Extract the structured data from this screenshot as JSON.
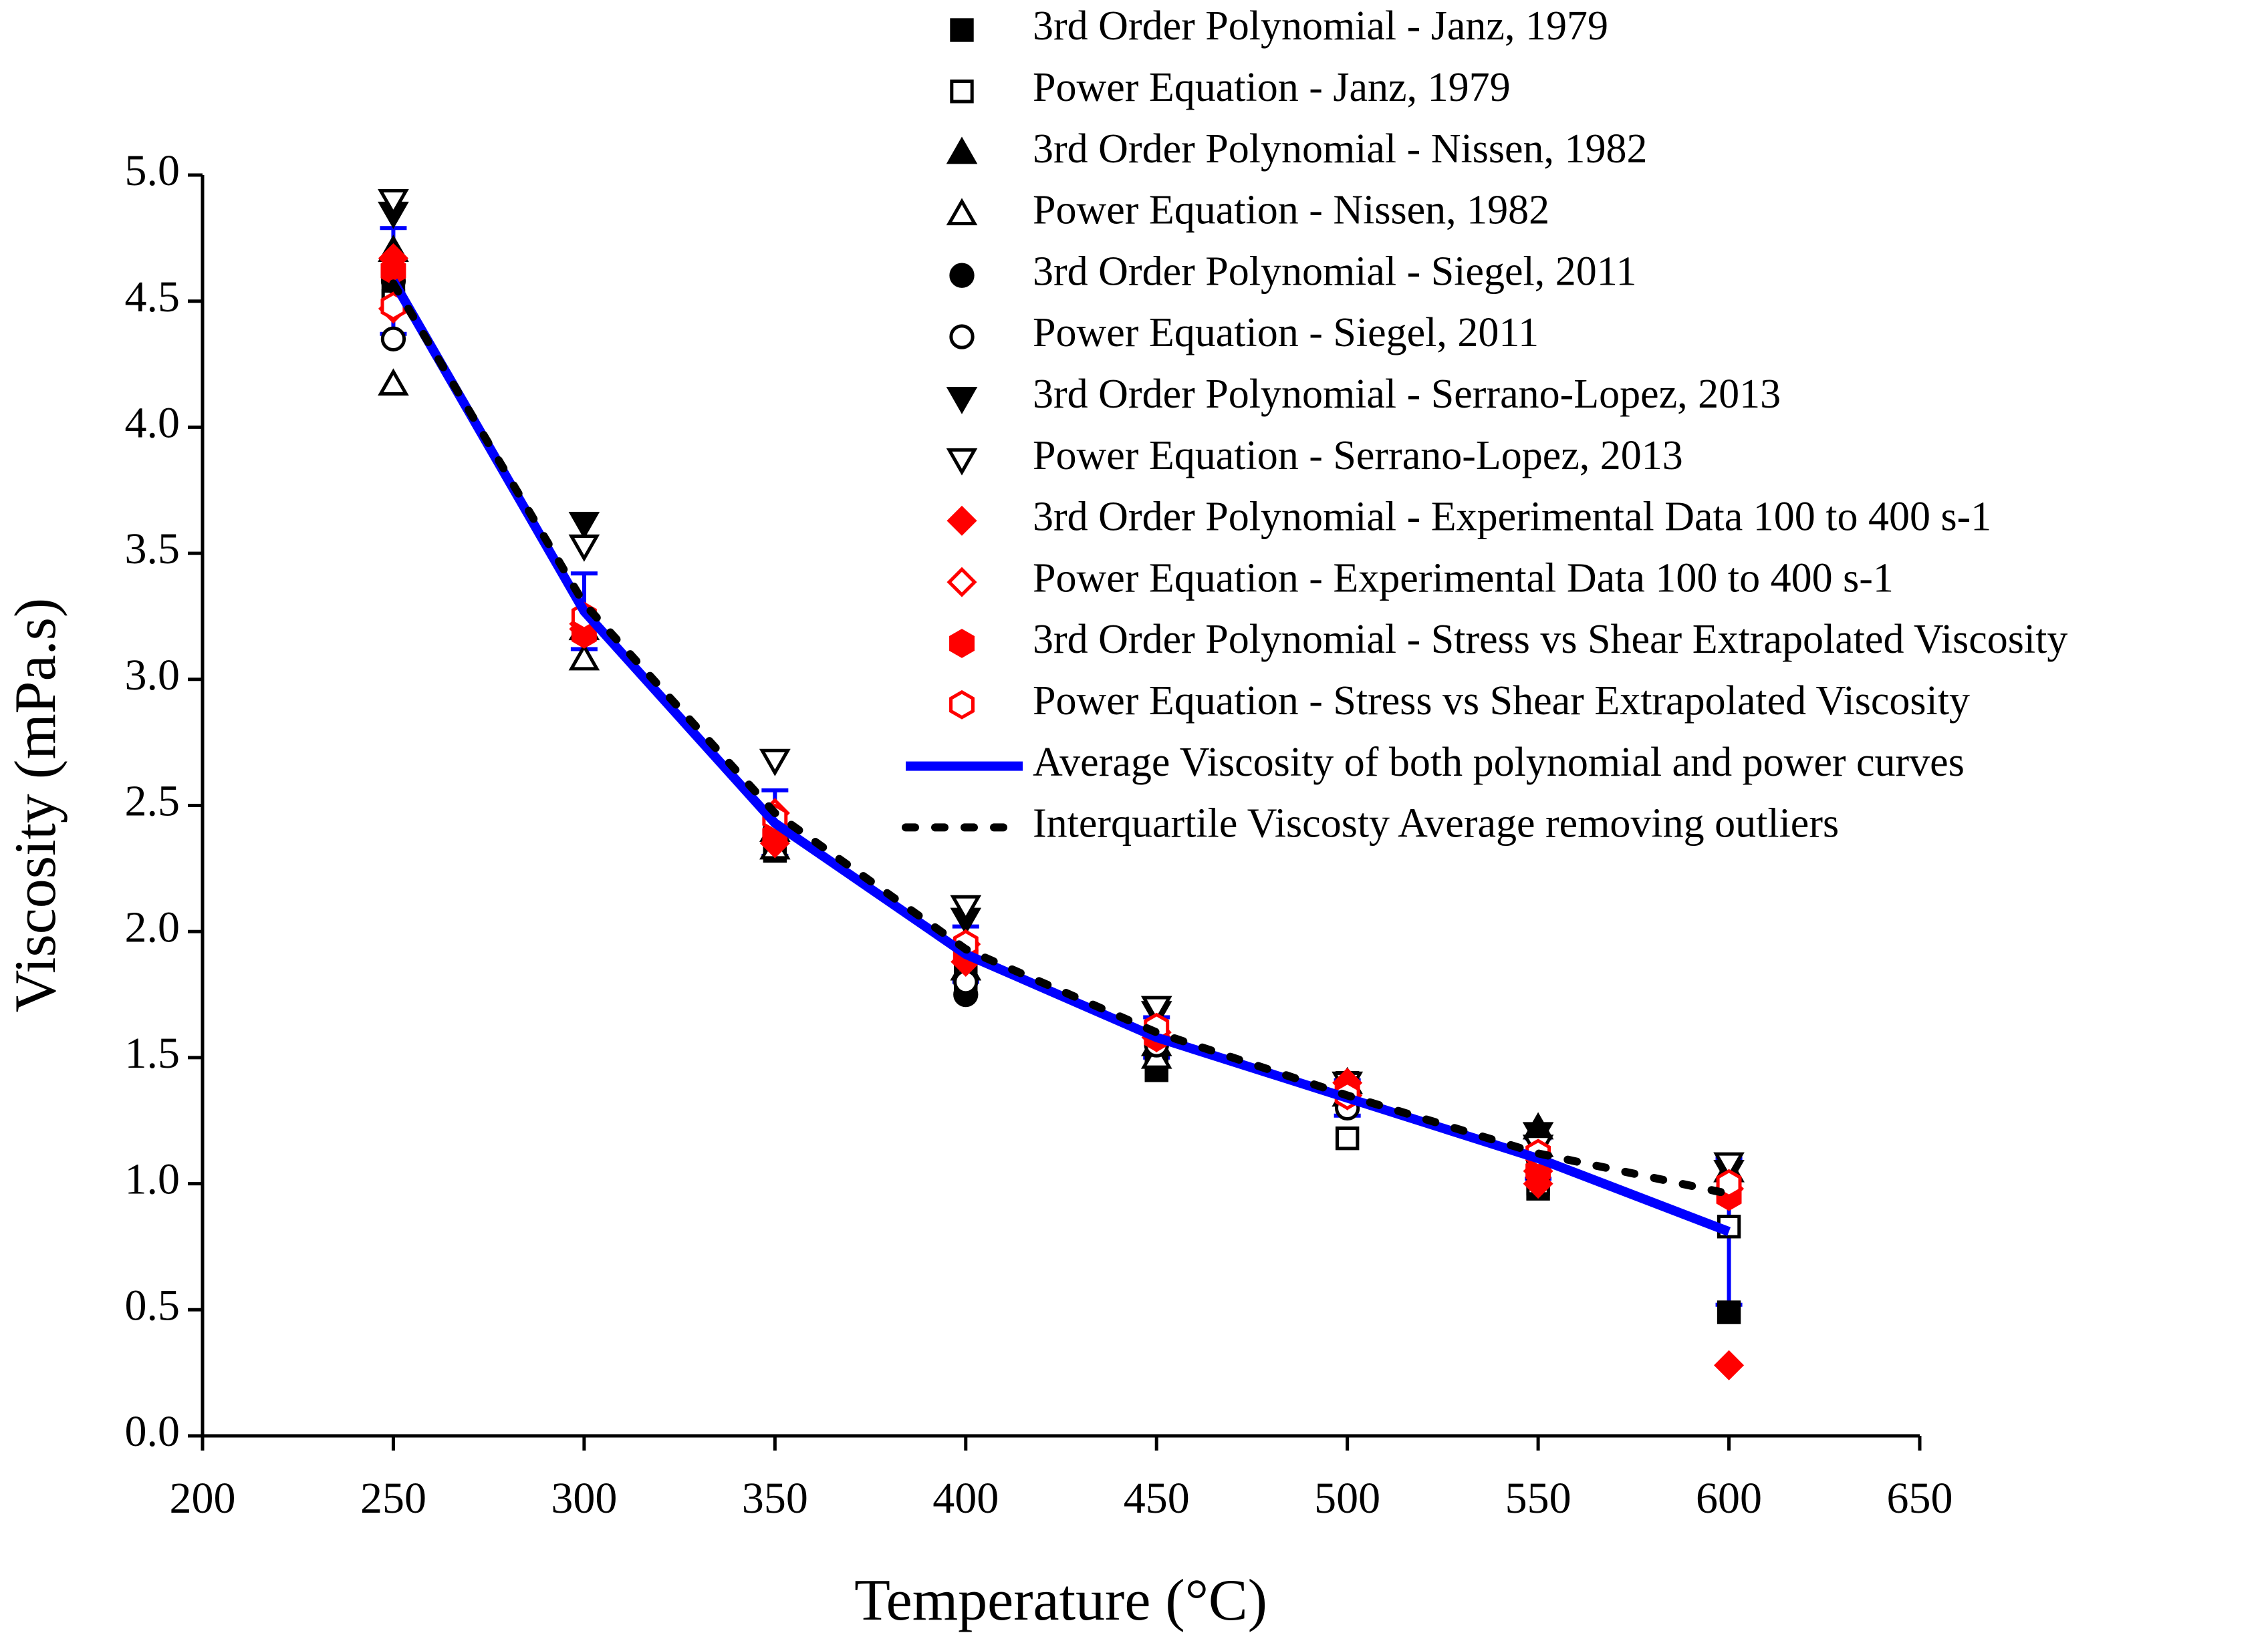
{
  "chart_data": {
    "type": "scatter",
    "xlabel": "Temperature (°C)",
    "ylabel": "Viscosity (mPa.s)",
    "x": [
      250,
      300,
      350,
      400,
      450,
      500,
      550,
      600
    ],
    "xlim": [
      200,
      650
    ],
    "xticks": [
      200,
      250,
      300,
      350,
      400,
      450,
      500,
      550,
      600,
      650
    ],
    "ylim": [
      0,
      5
    ],
    "yticks": [
      {
        "value": 0,
        "label": "0.0"
      },
      0.5,
      {
        "value": 1,
        "label": "1.0"
      },
      1.5,
      {
        "value": 2,
        "label": "2.0"
      },
      2.5,
      {
        "value": 3,
        "label": "3.0"
      },
      3.5,
      {
        "value": 4,
        "label": "4.0"
      },
      4.5,
      {
        "value": 5,
        "label": "5.0"
      }
    ],
    "series": [
      {
        "name": "3rd Order Polynomial - Janz, 1979",
        "color": "#000000",
        "marker": "square",
        "filled": true,
        "values": [
          4.55,
          3.2,
          2.32,
          1.8,
          1.45,
          1.4,
          0.98,
          0.49
        ]
      },
      {
        "name": "Power Equation - Janz, 1979",
        "color": "#000000",
        "marker": "square",
        "filled": false,
        "values": [
          4.5,
          3.2,
          2.35,
          1.85,
          1.5,
          1.18,
          1.0,
          0.83
        ]
      },
      {
        "name": "3rd Order Polynomial - Nissen, 1982",
        "color": "#000000",
        "marker": "triangle-up",
        "filled": true,
        "values": [
          4.7,
          3.2,
          2.4,
          1.85,
          1.55,
          1.4,
          1.22,
          1.05
        ]
      },
      {
        "name": "Power Equation - Nissen, 1982",
        "color": "#000000",
        "marker": "triangle-up",
        "filled": false,
        "values": [
          4.17,
          3.08,
          2.33,
          1.85,
          1.5,
          1.35,
          1.15,
          1.05
        ]
      },
      {
        "name": "3rd Order Polynomial - Siegel, 2011",
        "color": "#000000",
        "marker": "circle",
        "filled": true,
        "values": [
          4.58,
          3.2,
          2.4,
          1.75,
          1.55,
          1.35,
          1.1,
          0.95
        ]
      },
      {
        "name": "Power Equation - Siegel, 2011",
        "color": "#000000",
        "marker": "circle",
        "filled": false,
        "values": [
          4.35,
          3.2,
          2.4,
          1.8,
          1.55,
          1.3,
          1.1,
          0.98
        ]
      },
      {
        "name": "3rd Order Polynomial - Serrano-Lopez, 2013",
        "color": "#000000",
        "marker": "triangle-down",
        "filled": true,
        "values": [
          4.85,
          3.62,
          2.68,
          2.05,
          1.68,
          1.4,
          1.2,
          1.05
        ]
      },
      {
        "name": "Power Equation - Serrano-Lopez, 2013",
        "color": "#000000",
        "marker": "triangle-down",
        "filled": false,
        "values": [
          4.9,
          3.53,
          2.68,
          2.1,
          1.7,
          1.4,
          1.15,
          1.08
        ]
      },
      {
        "name": "3rd Order Polynomial - Experimental Data 100 to 400 s-1",
        "color": "#ff0000",
        "marker": "diamond",
        "filled": true,
        "values": [
          4.67,
          3.2,
          2.35,
          1.88,
          1.58,
          1.4,
          1.0,
          0.28
        ]
      },
      {
        "name": "Power Equation - Experimental Data 100 to 400 s-1",
        "color": "#ff0000",
        "marker": "diamond",
        "filled": false,
        "values": [
          4.47,
          3.22,
          2.47,
          1.95,
          1.6,
          1.35,
          1.05,
          0.98
        ]
      },
      {
        "name": "3rd Order Polynomial - Stress vs Shear Extrapolated Viscosity",
        "color": "#ff0000",
        "marker": "hexagon",
        "filled": true,
        "values": [
          4.62,
          3.18,
          2.38,
          1.9,
          1.58,
          1.38,
          1.05,
          0.95
        ]
      },
      {
        "name": "Power Equation - Stress vs Shear Extrapolated Viscosity",
        "color": "#ff0000",
        "marker": "hexagon",
        "filled": false,
        "values": [
          4.48,
          3.25,
          2.45,
          1.95,
          1.62,
          1.35,
          1.12,
          1.0
        ]
      },
      {
        "name": "Average Viscosity of both polynomial and power curves",
        "color": "#0000ff",
        "marker": "line",
        "style": "solid",
        "values": [
          4.58,
          3.27,
          2.43,
          1.91,
          1.58,
          1.34,
          1.1,
          0.81
        ],
        "errors": [
          0.21,
          0.15,
          0.13,
          0.11,
          0.08,
          0.07,
          0.08,
          0.29
        ]
      },
      {
        "name": "Interquartile Viscosty Average removing outliers",
        "color": "#000000",
        "marker": "line",
        "style": "dotted",
        "values": [
          4.57,
          3.3,
          2.47,
          1.93,
          1.6,
          1.35,
          1.12,
          0.96
        ]
      }
    ]
  }
}
